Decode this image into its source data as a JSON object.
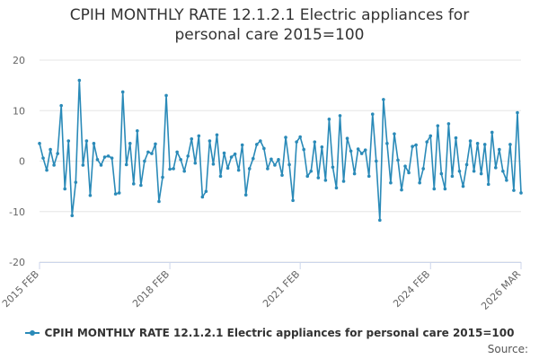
{
  "chart_data": {
    "type": "line",
    "title": "CPIH MONTHLY RATE 12.1.2.1 Electric appliances for personal care 2015=100",
    "title_lines": [
      "CPIH MONTHLY RATE 12.1.2.1 Electric appliances for",
      "personal care 2015=100"
    ],
    "xlabel": "",
    "ylabel": "",
    "ylim": [
      -20,
      20
    ],
    "yticks": [
      20,
      10,
      0,
      -10,
      -20
    ],
    "grid": true,
    "x_start": "2015 FEB",
    "x_end": "2026 MAR",
    "xticks": [
      {
        "label": "2015 FEB",
        "index": 0
      },
      {
        "label": "2018 FEB",
        "index": 36
      },
      {
        "label": "2021 FEB",
        "index": 72
      },
      {
        "label": "2024 FEB",
        "index": 108
      },
      {
        "label": "2026 MAR",
        "index": 133
      }
    ],
    "series": [
      {
        "name": "CPIH MONTHLY RATE 12.1.2.1 Electric appliances for personal care 2015=100",
        "color": "#2a8ab8",
        "values": [
          3.5,
          0.6,
          -1.8,
          2.3,
          -0.8,
          1.5,
          11.0,
          -5.5,
          4.0,
          -10.8,
          -4.2,
          16.0,
          -0.8,
          4.0,
          -6.8,
          3.5,
          0.3,
          -0.8,
          0.8,
          1.0,
          0.6,
          -6.5,
          -6.3,
          13.7,
          -0.7,
          3.5,
          -4.5,
          6.0,
          -4.8,
          0.0,
          1.8,
          1.5,
          3.4,
          -8.0,
          -3.2,
          13.0,
          -1.6,
          -1.5,
          1.8,
          0.3,
          -2.0,
          1.0,
          4.4,
          -0.4,
          5.0,
          -7.1,
          -6.0,
          4.0,
          -0.6,
          5.2,
          -3.0,
          1.6,
          -1.4,
          0.8,
          1.4,
          -1.8,
          3.2,
          -6.7,
          -1.5,
          0.5,
          3.3,
          4.0,
          2.5,
          -1.5,
          0.4,
          -0.8,
          0.3,
          -2.8,
          4.7,
          -0.7,
          -7.8,
          3.8,
          4.8,
          2.3,
          -3.0,
          -2.0,
          3.8,
          -3.3,
          2.8,
          -3.8,
          8.3,
          -1.2,
          -5.3,
          9.0,
          -4.0,
          4.5,
          2.0,
          -2.5,
          2.4,
          1.5,
          2.2,
          -3.0,
          9.3,
          0.0,
          -11.7,
          12.2,
          3.5,
          -4.3,
          5.4,
          0.2,
          -5.7,
          -1.0,
          -2.3,
          2.9,
          3.2,
          -4.3,
          -1.5,
          3.8,
          5.0,
          -5.5,
          7.0,
          -2.5,
          -5.5,
          7.4,
          -3.0,
          4.6,
          -2.0,
          -5.0,
          -0.7,
          4.0,
          -2.0,
          3.5,
          -2.5,
          3.3,
          -4.6,
          5.7,
          -1.3,
          2.3,
          -2.0,
          -3.8,
          3.3,
          -5.8,
          9.6,
          -6.3
        ]
      }
    ],
    "legend_position": "bottom",
    "source_label": "Source:"
  }
}
